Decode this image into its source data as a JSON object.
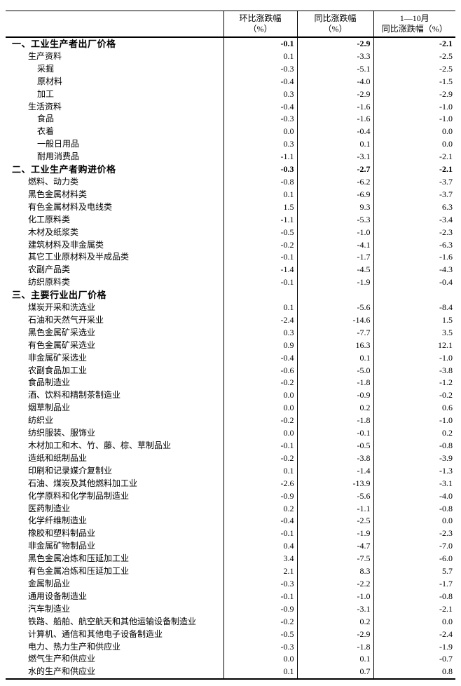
{
  "colors": {
    "background": "#ffffff",
    "text": "#000000",
    "border": "#000000"
  },
  "table": {
    "header": {
      "label_col": "",
      "mom_line1": "环比涨跌幅",
      "mom_line2": "（%）",
      "yoy_line1": "同比涨跌幅",
      "yoy_line2": "（%）",
      "ytd_line1": "1—10月",
      "ytd_line2": "同比涨跌幅（%）"
    },
    "rows": [
      {
        "label": "一、工业生产者出厂价格",
        "indent": 0,
        "bold": true,
        "mom": "-0.1",
        "yoy": "-2.9",
        "ytd": "-2.1"
      },
      {
        "label": "生产资料",
        "indent": 1,
        "bold": false,
        "mom": "0.1",
        "yoy": "-3.3",
        "ytd": "-2.5"
      },
      {
        "label": "采掘",
        "indent": 2,
        "bold": false,
        "mom": "-0.3",
        "yoy": "-5.1",
        "ytd": "-2.5"
      },
      {
        "label": "原材料",
        "indent": 2,
        "bold": false,
        "mom": "-0.4",
        "yoy": "-4.0",
        "ytd": "-1.5"
      },
      {
        "label": "加工",
        "indent": 2,
        "bold": false,
        "mom": "0.3",
        "yoy": "-2.9",
        "ytd": "-2.9"
      },
      {
        "label": "生活资料",
        "indent": 1,
        "bold": false,
        "mom": "-0.4",
        "yoy": "-1.6",
        "ytd": "-1.0"
      },
      {
        "label": "食品",
        "indent": 2,
        "bold": false,
        "mom": "-0.3",
        "yoy": "-1.6",
        "ytd": "-1.0"
      },
      {
        "label": "衣着",
        "indent": 2,
        "bold": false,
        "mom": "0.0",
        "yoy": "-0.4",
        "ytd": "0.0"
      },
      {
        "label": "一般日用品",
        "indent": 2,
        "bold": false,
        "mom": "0.3",
        "yoy": "0.1",
        "ytd": "0.0"
      },
      {
        "label": "耐用消费品",
        "indent": 2,
        "bold": false,
        "mom": "-1.1",
        "yoy": "-3.1",
        "ytd": "-2.1"
      },
      {
        "label": "二、工业生产者购进价格",
        "indent": 0,
        "bold": true,
        "mom": "-0.3",
        "yoy": "-2.7",
        "ytd": "-2.1"
      },
      {
        "label": "燃料、动力类",
        "indent": 1,
        "bold": false,
        "mom": "-0.8",
        "yoy": "-6.2",
        "ytd": "-3.7"
      },
      {
        "label": "黑色金属材料类",
        "indent": 1,
        "bold": false,
        "mom": "0.1",
        "yoy": "-6.9",
        "ytd": "-3.7"
      },
      {
        "label": "有色金属材料及电线类",
        "indent": 1,
        "bold": false,
        "mom": "1.5",
        "yoy": "9.3",
        "ytd": "6.3"
      },
      {
        "label": "化工原料类",
        "indent": 1,
        "bold": false,
        "mom": "-1.1",
        "yoy": "-5.3",
        "ytd": "-3.4"
      },
      {
        "label": "木材及纸浆类",
        "indent": 1,
        "bold": false,
        "mom": "-0.5",
        "yoy": "-1.0",
        "ytd": "-2.3"
      },
      {
        "label": "建筑材料及非金属类",
        "indent": 1,
        "bold": false,
        "mom": "-0.2",
        "yoy": "-4.1",
        "ytd": "-6.3"
      },
      {
        "label": "其它工业原材料及半成品类",
        "indent": 1,
        "bold": false,
        "mom": "-0.1",
        "yoy": "-1.7",
        "ytd": "-1.6"
      },
      {
        "label": "农副产品类",
        "indent": 1,
        "bold": false,
        "mom": "-1.4",
        "yoy": "-4.5",
        "ytd": "-4.3"
      },
      {
        "label": "纺织原料类",
        "indent": 1,
        "bold": false,
        "mom": "-0.1",
        "yoy": "-1.9",
        "ytd": "-0.4"
      },
      {
        "label": "三、主要行业出厂价格",
        "indent": 0,
        "bold": true,
        "mom": "",
        "yoy": "",
        "ytd": ""
      },
      {
        "label": "煤炭开采和洗选业",
        "indent": 1,
        "bold": false,
        "mom": "0.1",
        "yoy": "-5.6",
        "ytd": "-8.4"
      },
      {
        "label": "石油和天然气开采业",
        "indent": 1,
        "bold": false,
        "mom": "-2.4",
        "yoy": "-14.6",
        "ytd": "1.5"
      },
      {
        "label": "黑色金属矿采选业",
        "indent": 1,
        "bold": false,
        "mom": "0.3",
        "yoy": "-7.7",
        "ytd": "3.5"
      },
      {
        "label": "有色金属矿采选业",
        "indent": 1,
        "bold": false,
        "mom": "0.9",
        "yoy": "16.3",
        "ytd": "12.1"
      },
      {
        "label": "非金属矿采选业",
        "indent": 1,
        "bold": false,
        "mom": "-0.4",
        "yoy": "0.1",
        "ytd": "-1.0"
      },
      {
        "label": "农副食品加工业",
        "indent": 1,
        "bold": false,
        "mom": "-0.6",
        "yoy": "-5.0",
        "ytd": "-3.8"
      },
      {
        "label": "食品制造业",
        "indent": 1,
        "bold": false,
        "mom": "-0.2",
        "yoy": "-1.8",
        "ytd": "-1.2"
      },
      {
        "label": "酒、饮料和精制茶制造业",
        "indent": 1,
        "bold": false,
        "mom": "0.0",
        "yoy": "-0.9",
        "ytd": "-0.2"
      },
      {
        "label": "烟草制品业",
        "indent": 1,
        "bold": false,
        "mom": "0.0",
        "yoy": "0.2",
        "ytd": "0.6"
      },
      {
        "label": "纺织业",
        "indent": 1,
        "bold": false,
        "mom": "-0.2",
        "yoy": "-1.8",
        "ytd": "-1.0"
      },
      {
        "label": "纺织服装、服饰业",
        "indent": 1,
        "bold": false,
        "mom": "0.0",
        "yoy": "-0.1",
        "ytd": "0.2"
      },
      {
        "label": "木材加工和木、竹、藤、棕、草制品业",
        "indent": 1,
        "bold": false,
        "mom": "-0.1",
        "yoy": "-0.5",
        "ytd": "-0.8"
      },
      {
        "label": "造纸和纸制品业",
        "indent": 1,
        "bold": false,
        "mom": "-0.2",
        "yoy": "-3.8",
        "ytd": "-3.9"
      },
      {
        "label": "印刷和记录媒介复制业",
        "indent": 1,
        "bold": false,
        "mom": "0.1",
        "yoy": "-1.4",
        "ytd": "-1.3"
      },
      {
        "label": "石油、煤炭及其他燃料加工业",
        "indent": 1,
        "bold": false,
        "mom": "-2.6",
        "yoy": "-13.9",
        "ytd": "-3.1"
      },
      {
        "label": "化学原料和化学制品制造业",
        "indent": 1,
        "bold": false,
        "mom": "-0.9",
        "yoy": "-5.6",
        "ytd": "-4.0"
      },
      {
        "label": "医药制造业",
        "indent": 1,
        "bold": false,
        "mom": "0.2",
        "yoy": "-1.1",
        "ytd": "-0.8"
      },
      {
        "label": "化学纤维制造业",
        "indent": 1,
        "bold": false,
        "mom": "-0.4",
        "yoy": "-2.5",
        "ytd": "0.0"
      },
      {
        "label": "橡胶和塑料制品业",
        "indent": 1,
        "bold": false,
        "mom": "-0.1",
        "yoy": "-1.9",
        "ytd": "-2.3"
      },
      {
        "label": "非金属矿物制品业",
        "indent": 1,
        "bold": false,
        "mom": "0.4",
        "yoy": "-4.7",
        "ytd": "-7.0"
      },
      {
        "label": "黑色金属冶炼和压延加工业",
        "indent": 1,
        "bold": false,
        "mom": "3.4",
        "yoy": "-7.5",
        "ytd": "-6.0"
      },
      {
        "label": "有色金属冶炼和压延加工业",
        "indent": 1,
        "bold": false,
        "mom": "2.1",
        "yoy": "8.3",
        "ytd": "5.7"
      },
      {
        "label": "金属制品业",
        "indent": 1,
        "bold": false,
        "mom": "-0.3",
        "yoy": "-2.2",
        "ytd": "-1.7"
      },
      {
        "label": "通用设备制造业",
        "indent": 1,
        "bold": false,
        "mom": "-0.1",
        "yoy": "-1.0",
        "ytd": "-0.8"
      },
      {
        "label": "汽车制造业",
        "indent": 1,
        "bold": false,
        "mom": "-0.9",
        "yoy": "-3.1",
        "ytd": "-2.1"
      },
      {
        "label": "铁路、船舶、航空航天和其他运输设备制造业",
        "indent": 1,
        "bold": false,
        "mom": "-0.2",
        "yoy": "0.2",
        "ytd": "0.0"
      },
      {
        "label": "计算机、通信和其他电子设备制造业",
        "indent": 1,
        "bold": false,
        "mom": "-0.5",
        "yoy": "-2.9",
        "ytd": "-2.4"
      },
      {
        "label": "电力、热力生产和供应业",
        "indent": 1,
        "bold": false,
        "mom": "-0.3",
        "yoy": "-1.8",
        "ytd": "-1.9"
      },
      {
        "label": "燃气生产和供应业",
        "indent": 1,
        "bold": false,
        "mom": "0.0",
        "yoy": "0.1",
        "ytd": "-0.7"
      },
      {
        "label": "水的生产和供应业",
        "indent": 1,
        "bold": false,
        "mom": "0.1",
        "yoy": "0.7",
        "ytd": "0.8"
      }
    ]
  }
}
